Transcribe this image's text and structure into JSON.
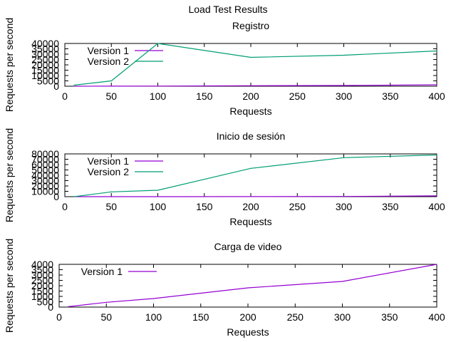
{
  "figure": {
    "title": "Load Test Results"
  },
  "chart_data": [
    {
      "type": "line",
      "title": "Registro",
      "xlabel": "Requests",
      "ylabel": "Requests per second",
      "xlim": [
        0,
        400
      ],
      "ylim": [
        0,
        40000
      ],
      "xticks": [
        0,
        50,
        100,
        150,
        200,
        250,
        300,
        350,
        400
      ],
      "yticks": [
        0,
        5000,
        10000,
        15000,
        20000,
        25000,
        30000,
        35000,
        40000
      ],
      "grid": false,
      "legend": "top-left",
      "series": [
        {
          "name": "Version 1",
          "color": "#9400d3",
          "x": [
            10,
            50,
            100,
            200,
            300,
            400
          ],
          "y": [
            10,
            60,
            120,
            500,
            700,
            1300
          ]
        },
        {
          "name": "Version 2",
          "color": "#009e73",
          "x": [
            10,
            50,
            100,
            200,
            300,
            400
          ],
          "y": [
            1000,
            5000,
            40000,
            27000,
            29000,
            33000
          ]
        }
      ]
    },
    {
      "type": "line",
      "title": "Inicio de sesión",
      "xlabel": "Requests",
      "ylabel": "Requests per second",
      "xlim": [
        0,
        400
      ],
      "ylim": [
        0,
        80000
      ],
      "xticks": [
        0,
        50,
        100,
        150,
        200,
        250,
        300,
        350,
        400
      ],
      "yticks": [
        0,
        10000,
        20000,
        30000,
        40000,
        50000,
        60000,
        70000,
        80000
      ],
      "grid": false,
      "legend": "top-left",
      "series": [
        {
          "name": "Version 1",
          "color": "#9400d3",
          "x": [
            10,
            50,
            100,
            200,
            300,
            400
          ],
          "y": [
            0,
            20,
            50,
            150,
            400,
            1500
          ]
        },
        {
          "name": "Version 2",
          "color": "#009e73",
          "x": [
            10,
            50,
            100,
            200,
            300,
            400
          ],
          "y": [
            0,
            9000,
            12000,
            53000,
            73000,
            78000
          ]
        }
      ]
    },
    {
      "type": "line",
      "title": "Carga de video",
      "xlabel": "Requests",
      "ylabel": "Requests per second",
      "xlim": [
        0,
        400
      ],
      "ylim": [
        0,
        4000
      ],
      "xticks": [
        0,
        50,
        100,
        150,
        200,
        250,
        300,
        350,
        400
      ],
      "yticks": [
        0,
        500,
        1000,
        1500,
        2000,
        2500,
        3000,
        3500,
        4000
      ],
      "grid": false,
      "legend": "top-left",
      "series": [
        {
          "name": "Version 1",
          "color": "#9400d3",
          "x": [
            10,
            50,
            100,
            200,
            300,
            400
          ],
          "y": [
            50,
            450,
            800,
            1800,
            2400,
            4000
          ]
        }
      ]
    }
  ]
}
